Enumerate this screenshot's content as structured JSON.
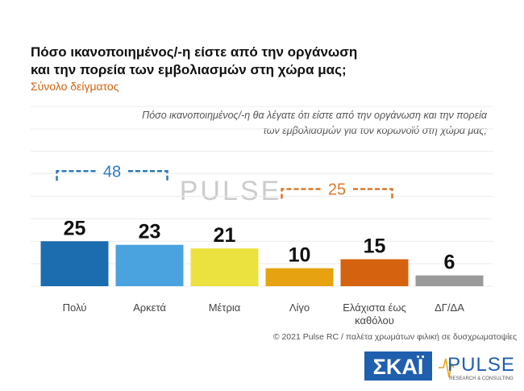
{
  "chart_data": {
    "type": "bar",
    "title": [
      "Πόσο ικανοποιημένος/-η είστε από την οργάνωση",
      "και την πορεία των εμβολιασμών στη χώρα μας;"
    ],
    "subtitle": "Σύνολο δείγματος",
    "question": [
      "Πόσο ικανοποιημένος/-η θα λέγατε ότι είστε από την οργάνωση και την πορεία",
      "των εμβολιασμών για τον κορωνοϊό στη χώρα μας;"
    ],
    "categories": [
      "Πολύ",
      "Αρκετά",
      "Μέτρια",
      "Λίγο",
      "Ελάχιστα έως καθόλου",
      "ΔΓ/ΔΑ"
    ],
    "values": [
      25,
      23,
      21,
      10,
      15,
      6
    ],
    "colors": [
      "#1c6cb0",
      "#4aa3df",
      "#ece23f",
      "#e6a211",
      "#d5620f",
      "#9a9a9a"
    ],
    "ylim": [
      0,
      100
    ],
    "yticks": [
      0,
      12.5,
      25,
      37.5,
      50,
      62.5,
      75,
      87.5,
      100
    ],
    "ytick_labels": false,
    "grid": true,
    "groups": [
      {
        "value": 48,
        "color": "#2b7bb9",
        "categories": [
          "Πολύ",
          "Αρκετά"
        ]
      },
      {
        "value": 25,
        "color": "#d9782b",
        "categories": [
          "Λίγο",
          "Ελάχιστα έως καθόλου"
        ]
      }
    ],
    "watermark": "PULSE",
    "footer": "© 2021 Pulse RC  /  παλέτα χρωμάτων φιλική σε δυσχρωματοψίες",
    "logos": {
      "broadcaster": "ΣΚΑΪ",
      "brand": "PULSE",
      "brand_tagline": "RESEARCH & CONSULTING"
    }
  }
}
